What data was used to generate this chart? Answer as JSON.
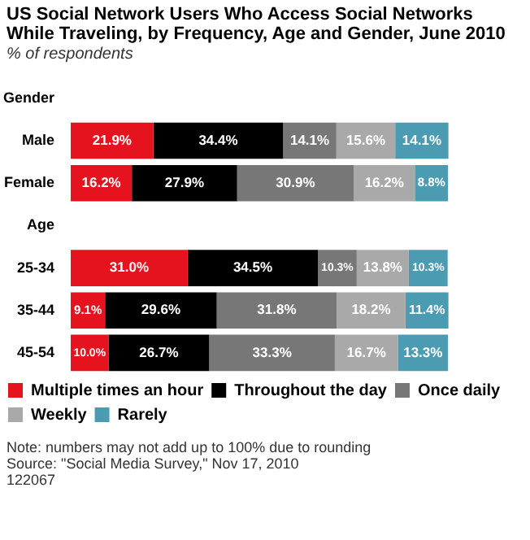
{
  "chart_data": {
    "type": "bar",
    "orientation": "horizontal",
    "stacked": true,
    "title": "US Social Network Users Who Access Social Networks While Traveling, by Frequency, Age and Gender, June 2010",
    "subtitle": "% of respondents",
    "categories": [
      "Gender",
      "Male",
      "Female",
      "Age",
      "25-34",
      "35-44",
      "45-54"
    ],
    "series": [
      {
        "name": "Multiple times an hour",
        "color": "#e5131d",
        "values": [
          null,
          21.9,
          16.2,
          null,
          31.0,
          9.1,
          10.0
        ],
        "value_labels": [
          null,
          "21.9%",
          "16.2%",
          null,
          "31.0%",
          "9.1%",
          "10.0%"
        ]
      },
      {
        "name": "Throughout the day",
        "color": "#000000",
        "values": [
          null,
          34.4,
          27.9,
          null,
          34.5,
          29.6,
          26.7
        ],
        "value_labels": [
          null,
          "34.4%",
          "27.9%",
          null,
          "34.5%",
          "29.6%",
          "26.7%"
        ]
      },
      {
        "name": "Once daily",
        "color": "#777777",
        "values": [
          null,
          14.1,
          30.9,
          null,
          10.3,
          31.8,
          33.3
        ],
        "value_labels": [
          null,
          "14.1%",
          "30.9%",
          null,
          "10.3%",
          "31.8%",
          "33.3%"
        ]
      },
      {
        "name": "Weekly",
        "color": "#a9a9a9",
        "values": [
          null,
          15.6,
          16.2,
          null,
          13.8,
          18.2,
          16.7
        ],
        "value_labels": [
          null,
          "15.6%",
          "16.2%",
          null,
          "13.8%",
          "18.2%",
          "16.7%"
        ]
      },
      {
        "name": "Rarely",
        "color": "#4b9bb3",
        "values": [
          null,
          14.1,
          8.8,
          null,
          10.3,
          11.4,
          13.3
        ],
        "value_labels": [
          null,
          "14.1%",
          "8.8%",
          null,
          "10.3%",
          "11.4%",
          "13.3%"
        ]
      }
    ],
    "tick_labels": "y",
    "grid": false,
    "legend": "bottom",
    "annotations": [
      "Note: numbers may not add up to 100% due to rounding",
      "Source: \"Social Media Survey,\" Nov 17, 2010",
      "122067"
    ]
  }
}
